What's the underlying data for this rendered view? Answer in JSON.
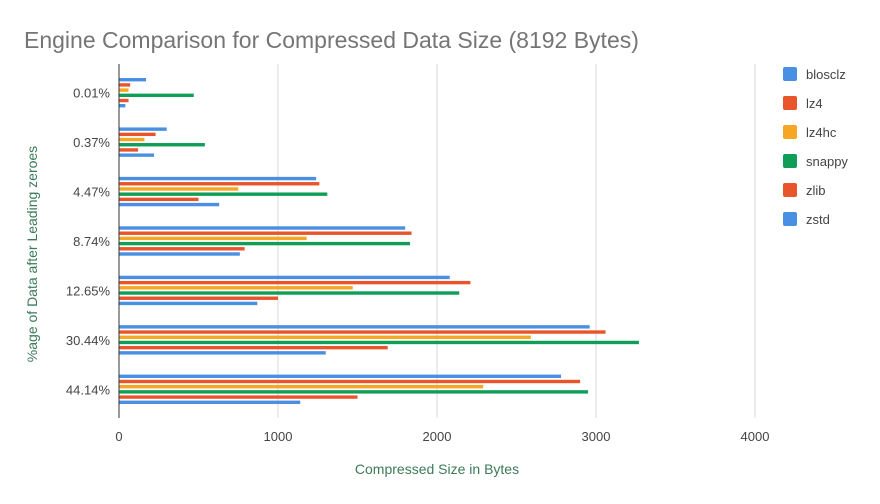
{
  "chart_data": {
    "type": "bar",
    "orientation": "horizontal",
    "title": "Engine Comparison for Compressed Data Size (8192 Bytes)",
    "xlabel": "Compressed Size in Bytes",
    "ylabel": "%age of Data after Leading zeroes",
    "xlim": [
      0,
      4000
    ],
    "xticks": [
      "0",
      "1000",
      "2000",
      "3000",
      "4000"
    ],
    "grid": true,
    "legend_position": "right",
    "categories": [
      "0.01%",
      "0.37%",
      "4.47%",
      "8.74%",
      "12.65%",
      "30.44%",
      "44.14%"
    ],
    "series": [
      {
        "name": "blosclz",
        "color": "#4a90e2",
        "values": [
          170,
          300,
          1240,
          1800,
          2080,
          2960,
          2780
        ]
      },
      {
        "name": "lz4",
        "color": "#e8552a",
        "values": [
          70,
          230,
          1260,
          1840,
          2210,
          3060,
          2900
        ]
      },
      {
        "name": "lz4hc",
        "color": "#f5a623",
        "values": [
          60,
          160,
          750,
          1180,
          1470,
          2590,
          2290
        ]
      },
      {
        "name": "snappy",
        "color": "#0f9d58",
        "values": [
          470,
          540,
          1310,
          1830,
          2140,
          3270,
          2950
        ]
      },
      {
        "name": "zlib",
        "color": "#e8552a",
        "values": [
          60,
          120,
          500,
          790,
          1000,
          1690,
          1500
        ]
      },
      {
        "name": "zstd",
        "color": "#4a90e2",
        "values": [
          40,
          220,
          630,
          760,
          870,
          1300,
          1140
        ]
      }
    ]
  }
}
